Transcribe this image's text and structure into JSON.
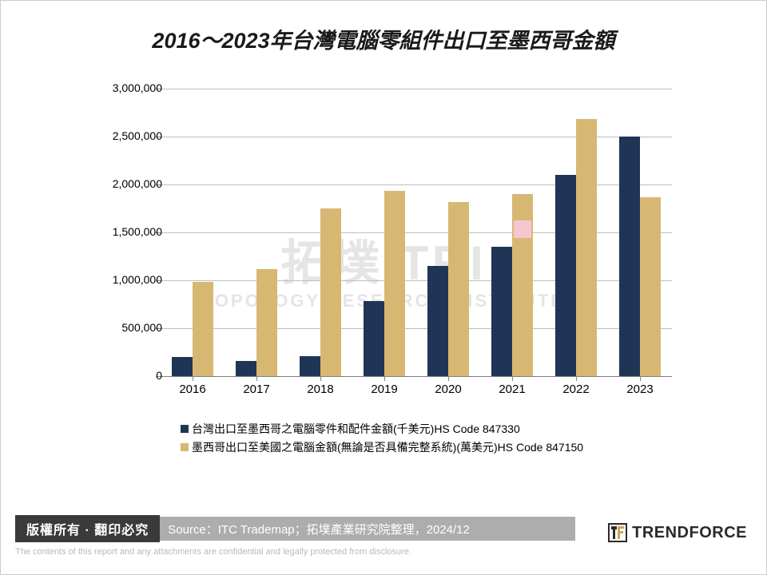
{
  "title": {
    "text": "2016～2023年台灣電腦零組件出口至墨西哥金額",
    "fontsize": 27,
    "color": "#1a1a1a"
  },
  "chart": {
    "type": "bar",
    "categories": [
      "2016",
      "2017",
      "2018",
      "2019",
      "2020",
      "2021",
      "2022",
      "2023"
    ],
    "series": [
      {
        "name": "台灣出口至墨西哥之電腦零件和配件金額(千美元)HS Code 847330",
        "color": "#1f3556",
        "values": [
          200000,
          160000,
          210000,
          780000,
          1150000,
          1350000,
          2100000,
          2500000
        ]
      },
      {
        "name": "墨西哥出口至美國之電腦金額(無論是否具備完整系統)(萬美元)HS Code 847150",
        "color": "#d7b873",
        "values": [
          980000,
          1120000,
          1750000,
          1930000,
          1820000,
          1900000,
          2680000,
          1870000
        ]
      }
    ],
    "ylim": [
      0,
      3000000
    ],
    "ytick_step": 500000,
    "ytick_labels": [
      "0",
      "500,000",
      "1,000,000",
      "1,500,000",
      "2,000,000",
      "2,500,000",
      "3,000,000"
    ],
    "grid_color": "#bfbfbf",
    "axis_color": "#808080",
    "background_color": "#ffffff",
    "bar_width_ratio": 0.32,
    "xtick_fontsize": 15,
    "ytick_fontsize": 14,
    "legend_fontsize": 14
  },
  "watermark": {
    "line1": "拓墣 TRI",
    "line2": "TOPOLOGY RESEARCH INSTITUTE",
    "color": "#e5e5e5"
  },
  "pink_marker_color": "#f7c5cf",
  "footer": {
    "copyright": "版權所有 · 翻印必究",
    "source": "Source：ITC Trademap；拓墣產業研究院整理，2024/12",
    "logo_text": "TRENDFORCE",
    "disclaimer": "The contents of this report and any attachments are confidential and legally protected from disclosure.",
    "copyright_bg": "#3a3a3a",
    "source_bg": "#adadad"
  }
}
